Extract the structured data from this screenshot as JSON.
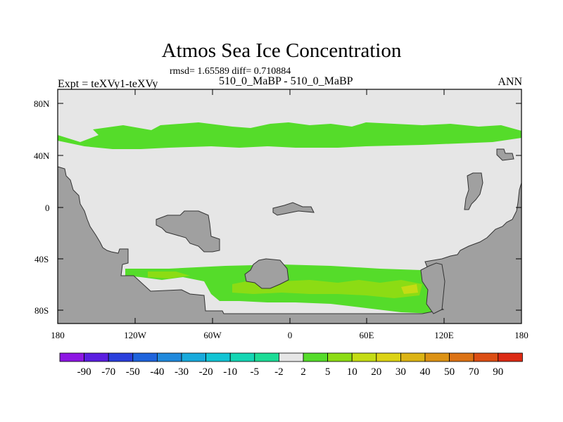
{
  "title": "Atmos Sea Ice Concentration",
  "stats_line": "rmsd= 1.65589 diff= 0.710884",
  "experiment_label": "Expt = teXVy1-teXVy",
  "subtitle": "510_0_MaBP - 510_0_MaBP",
  "season": "ANN",
  "lat_ticks": [
    "80N",
    "40N",
    "0",
    "40S",
    "80S"
  ],
  "lon_ticks": [
    "180",
    "120W",
    "60W",
    "0",
    "60E",
    "120E",
    "180"
  ],
  "colorbar": {
    "labels": [
      "-90",
      "-70",
      "-50",
      "-40",
      "-30",
      "-20",
      "-10",
      "-5",
      "-2",
      "2",
      "5",
      "10",
      "20",
      "30",
      "40",
      "50",
      "70",
      "90"
    ],
    "colors": [
      "#8d16e3",
      "#5a1ee0",
      "#2a3fdc",
      "#1e63dc",
      "#2089dc",
      "#18aadc",
      "#12c4d4",
      "#14d6b4",
      "#1cdc96",
      "#e6e6e6",
      "#55dc2a",
      "#8cdc14",
      "#c4dc14",
      "#dcd314",
      "#dcb414",
      "#dc9214",
      "#dc7214",
      "#dc4e14",
      "#dc2a14"
    ]
  },
  "map_colors": {
    "land": "#a0a0a0",
    "ocean_zero": "#e6e6e6",
    "pos_low": "#55dc2a",
    "pos_mid": "#8cdc14"
  }
}
